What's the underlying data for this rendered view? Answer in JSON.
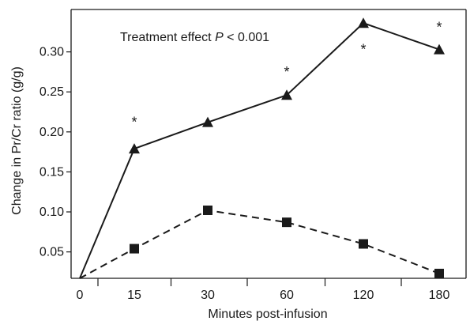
{
  "chart_data": {
    "type": "line",
    "title": "",
    "xlabel": "Minutes post-infusion",
    "ylabel": "Change in Pr/Cr ratio (g/g)",
    "annotation_prefix": "Treatment effect ",
    "annotation_stat": "P",
    "annotation_suffix": " < 0.001",
    "categories": [
      "0",
      "15",
      "30",
      "60",
      "120",
      "180"
    ],
    "ylim": [
      0.017,
      0.353
    ],
    "y_ticks": [
      {
        "value": 0.05,
        "label": "0.05"
      },
      {
        "value": 0.1,
        "label": "0.10"
      },
      {
        "value": 0.15,
        "label": "0.15"
      },
      {
        "value": 0.2,
        "label": "0.20"
      },
      {
        "value": 0.25,
        "label": "0.25"
      },
      {
        "value": 0.3,
        "label": "0.30"
      }
    ],
    "grid": false,
    "series": [
      {
        "marker": "triangle",
        "line_style": "solid",
        "values": [
          0.017,
          0.179,
          0.212,
          0.246,
          0.336,
          0.303
        ]
      },
      {
        "marker": "square",
        "line_style": "dashed",
        "values": [
          0.017,
          0.054,
          0.102,
          0.087,
          0.06,
          0.023
        ]
      }
    ],
    "significance_marks": [
      {
        "category": "15",
        "value": 0.212,
        "symbol": "*"
      },
      {
        "category": "60",
        "value": 0.275,
        "symbol": "*"
      },
      {
        "category": "120",
        "value": 0.303,
        "symbol": "*"
      },
      {
        "category": "180",
        "value": 0.331,
        "symbol": "*"
      }
    ],
    "colors": {
      "ink": "#1a1a1a",
      "background": "#ffffff"
    }
  }
}
